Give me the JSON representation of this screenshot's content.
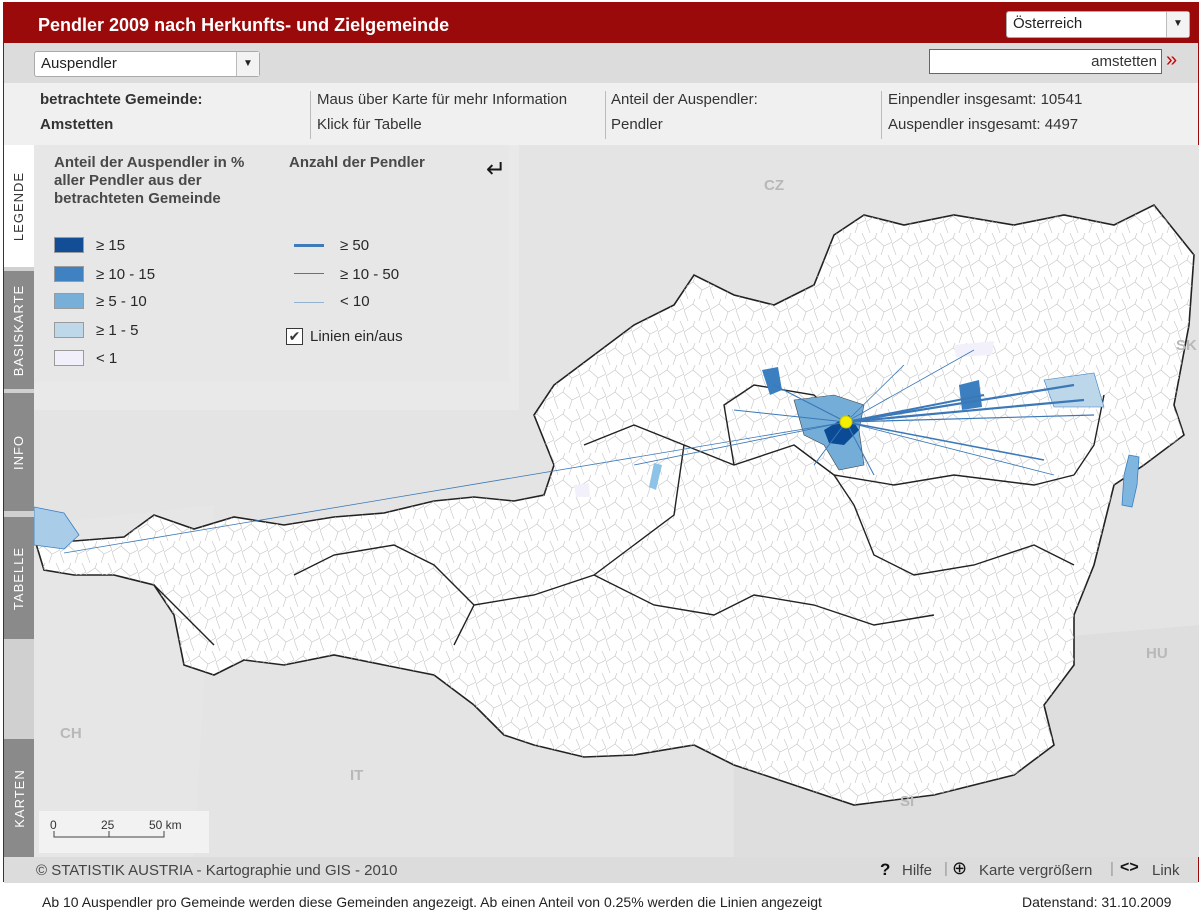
{
  "header": {
    "title": "Pendler 2009 nach Herkunfts- und Zielgemeinde",
    "region_select": "Österreich"
  },
  "toolbar": {
    "mode_select": "Auspendler",
    "search_value": "amstetten",
    "go_glyph": "»"
  },
  "info": {
    "label_gemeinde": "betrachtete Gemeinde:",
    "gemeinde": "Amstetten",
    "hint_hover": "Maus über Karte für mehr Information",
    "hint_click": "Klick für Tabelle",
    "anteil_label": "Anteil der Auspendler:",
    "anteil_value": "Pendler",
    "einpendler": "Einpendler insgesamt: 10541",
    "auspendler": "Auspendler insgesamt: 4497"
  },
  "tabs": {
    "legende": "LEGENDE",
    "basiskarte": "BASISKARTE",
    "info": "INFO",
    "tabelle": "TABELLE",
    "karten": "KARTEN"
  },
  "legend": {
    "share_title_1": "Anteil der Auspendler in %",
    "share_title_2": "aller Pendler aus der",
    "share_title_3": "betrachteten Gemeinde",
    "count_title": "Anzahl der Pendler",
    "share_classes": [
      {
        "label": "≥ 15",
        "color": "#0b4a94"
      },
      {
        "label": "≥ 10 - 15",
        "color": "#3b7fc0"
      },
      {
        "label": "≥ 5 - 10",
        "color": "#74aed8"
      },
      {
        "label": "≥ 1 - 5",
        "color": "#bdd7ea"
      },
      {
        "label": "< 1",
        "color": "#f1f0fb"
      }
    ],
    "line_classes": [
      "≥ 50",
      "≥ 10 - 50",
      "< 10"
    ],
    "lines_toggle": "Linien ein/aus",
    "back_icon": "return-arrow-icon"
  },
  "countries": [
    "CZ",
    "SK",
    "HU",
    "SI",
    "IT",
    "CH"
  ],
  "scalebar": {
    "t0": "0",
    "t1": "25",
    "t2": "50 km"
  },
  "footer": {
    "copyright": "© STATISTIK AUSTRIA - Kartographie und GIS - 2010",
    "help": "Hilfe",
    "zoom": "Karte vergrößern",
    "link": "Link"
  },
  "bottom": {
    "note": "Ab 10 Auspendler pro Gemeinde werden diese Gemeinden angezeigt. Ab einen Anteil von 0.25% werden die Linien angezeigt",
    "date": "Datenstand: 31.10.2009"
  },
  "colors": {
    "brand": "#9b0a0a",
    "line": "#3a78b8",
    "origin": "#f5f000"
  }
}
